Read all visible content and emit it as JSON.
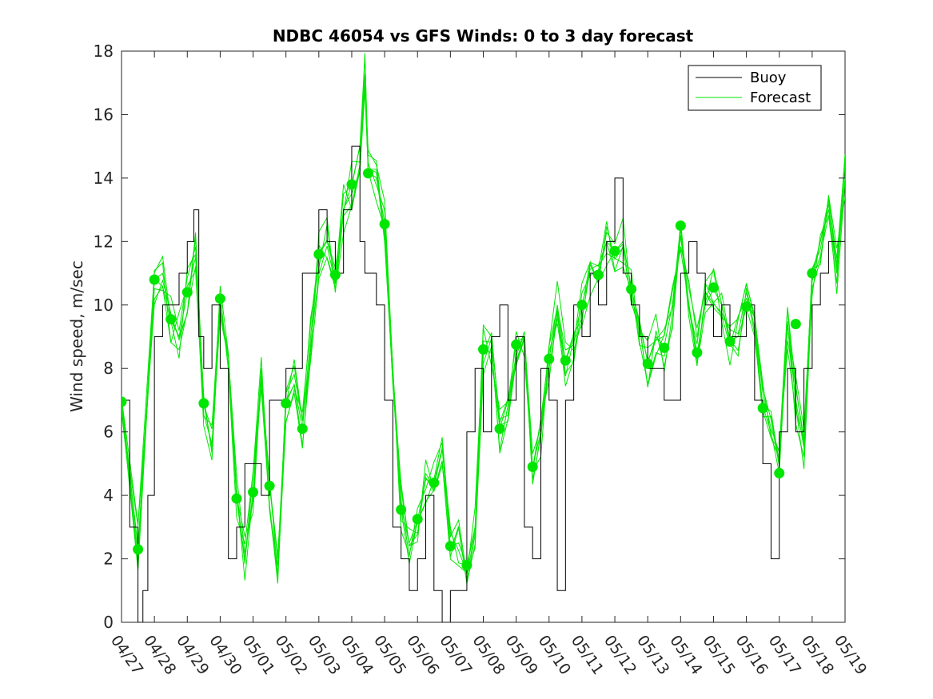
{
  "chart_data": {
    "type": "line",
    "title": "NDBC 46054 vs GFS Winds: 0 to 3 day forecast",
    "xlabel": "",
    "ylabel": "Wind speed, m/sec",
    "ylim": [
      0,
      18
    ],
    "yticks": [
      0,
      2,
      4,
      6,
      8,
      10,
      12,
      14,
      16,
      18
    ],
    "xticks": [
      "04/27",
      "04/28",
      "04/29",
      "04/30",
      "05/01",
      "05/02",
      "05/03",
      "05/04",
      "05/05",
      "05/06",
      "05/07",
      "05/08",
      "05/09",
      "05/10",
      "05/11",
      "05/12",
      "05/13",
      "05/14",
      "05/15",
      "05/16",
      "05/17",
      "05/18",
      "05/19"
    ],
    "xlim_days": [
      0,
      22
    ],
    "grid": false,
    "legend_position": "top-right",
    "series": [
      {
        "name": "Buoy",
        "color": "#000000",
        "x": [
          0,
          0.25,
          0.5,
          0.65,
          0.8,
          1,
          1.25,
          1.5,
          1.75,
          2,
          2.2,
          2.35,
          2.5,
          2.75,
          3,
          3.25,
          3.5,
          3.75,
          4,
          4.25,
          4.5,
          4.75,
          5,
          5.25,
          5.5,
          5.75,
          6,
          6.25,
          6.5,
          6.75,
          7,
          7.25,
          7.4,
          7.5,
          7.75,
          8,
          8.25,
          8.5,
          8.75,
          9,
          9.25,
          9.5,
          9.75,
          10,
          10.25,
          10.5,
          10.75,
          11,
          11.25,
          11.5,
          11.75,
          12,
          12.25,
          12.5,
          12.75,
          13,
          13.25,
          13.5,
          13.75,
          14,
          14.25,
          14.5,
          14.75,
          15,
          15.25,
          15.5,
          15.75,
          16,
          16.25,
          16.5,
          16.75,
          17,
          17.25,
          17.5,
          17.75,
          18,
          18.25,
          18.5,
          18.75,
          19,
          19.25,
          19.5,
          19.75,
          20,
          20.25,
          20.5,
          20.75,
          21,
          21.25,
          21.5,
          21.75,
          22
        ],
        "y": [
          7,
          3,
          0,
          1,
          4,
          9,
          10,
          10,
          11,
          12,
          13,
          9,
          8,
          10,
          8,
          2,
          3,
          5,
          5,
          4,
          7,
          7,
          8,
          8,
          11,
          11,
          13,
          12,
          11,
          13,
          15,
          12,
          11,
          11,
          10,
          7,
          3,
          2,
          1,
          2,
          4,
          1,
          0,
          1,
          1,
          6,
          8,
          6,
          9,
          10,
          7,
          9,
          3,
          2,
          8,
          7,
          1,
          7,
          10,
          9,
          11,
          10,
          12,
          14,
          11,
          10,
          9,
          8,
          8,
          7,
          7,
          11,
          12,
          11,
          10,
          9,
          10,
          9,
          9,
          10,
          7,
          5,
          2,
          6,
          8,
          6,
          8,
          10,
          11,
          12,
          12,
          13
        ],
        "note": ""
      },
      {
        "name": "Forecast",
        "color": "#00e600",
        "x": [
          0,
          0.5,
          1,
          1.25,
          1.5,
          1.75,
          2,
          2.25,
          2.5,
          2.75,
          3,
          3.25,
          3.5,
          3.75,
          4,
          4.25,
          4.5,
          4.75,
          5,
          5.25,
          5.5,
          5.75,
          6,
          6.25,
          6.5,
          6.75,
          7,
          7.25,
          7.4,
          7.5,
          7.75,
          8,
          8.25,
          8.5,
          8.75,
          9,
          9.25,
          9.5,
          9.75,
          10,
          10.25,
          10.5,
          10.75,
          11,
          11.25,
          11.5,
          11.75,
          12,
          12.25,
          12.5,
          12.75,
          13,
          13.25,
          13.5,
          13.75,
          14,
          14.25,
          14.5,
          14.75,
          15,
          15.25,
          15.5,
          15.75,
          16,
          16.25,
          16.5,
          16.75,
          17,
          17.25,
          17.5,
          17.75,
          18,
          18.25,
          18.5,
          18.75,
          19,
          19.25,
          19.5,
          19.75,
          20,
          20.25,
          20.5,
          20.75,
          21,
          21.25,
          21.5,
          21.75,
          22
        ],
        "y": [
          7,
          2.3,
          10.8,
          11,
          9.6,
          9,
          10.4,
          11.5,
          6.9,
          5.5,
          10.2,
          8,
          3.9,
          2,
          4.1,
          8,
          4.3,
          2,
          6.9,
          7.5,
          6.1,
          9,
          11.6,
          12,
          11,
          13,
          13.8,
          15,
          17.2,
          14.2,
          14,
          12.6,
          8,
          3.6,
          2.5,
          3.2,
          4.5,
          4.4,
          5.5,
          2.4,
          2.5,
          1.8,
          3,
          8.6,
          8.5,
          6.1,
          7,
          8.8,
          9,
          4.9,
          6,
          8.3,
          10,
          8.2,
          9,
          10,
          11,
          11,
          12,
          11.7,
          12,
          10.5,
          9.5,
          8.2,
          9,
          8.7,
          10,
          12.5,
          10,
          8.5,
          10,
          10.5,
          10,
          8.9,
          9,
          9.9,
          9,
          6.8,
          6,
          4.7,
          9.4,
          7,
          5.5,
          11,
          12,
          13,
          11,
          14
        ]
      }
    ],
    "markers": {
      "color": "#00e600",
      "x": [
        0,
        0.5,
        1,
        1.5,
        2,
        2.5,
        3,
        3.5,
        4,
        4.5,
        5,
        5.5,
        6,
        6.5,
        7,
        7.5,
        8,
        8.5,
        9,
        9.5,
        10,
        10.5,
        11,
        11.5,
        12,
        12.5,
        13,
        13.5,
        14,
        14.5,
        15,
        15.5,
        16,
        16.5,
        17,
        17.5,
        18,
        18.5,
        19,
        19.5,
        20,
        20.5,
        21
      ],
      "y": [
        6.95,
        2.3,
        10.8,
        9.55,
        10.4,
        6.9,
        10.2,
        3.9,
        4.1,
        4.3,
        6.9,
        6.1,
        11.6,
        10.95,
        13.8,
        14.15,
        12.55,
        3.55,
        3.25,
        4.4,
        2.4,
        1.8,
        8.6,
        6.1,
        8.75,
        4.9,
        8.3,
        8.25,
        10.0,
        10.95,
        11.7,
        10.5,
        8.15,
        8.65,
        12.5,
        8.5,
        10.55,
        8.85,
        9.95,
        6.75,
        4.7,
        9.4,
        11.0
      ]
    }
  }
}
